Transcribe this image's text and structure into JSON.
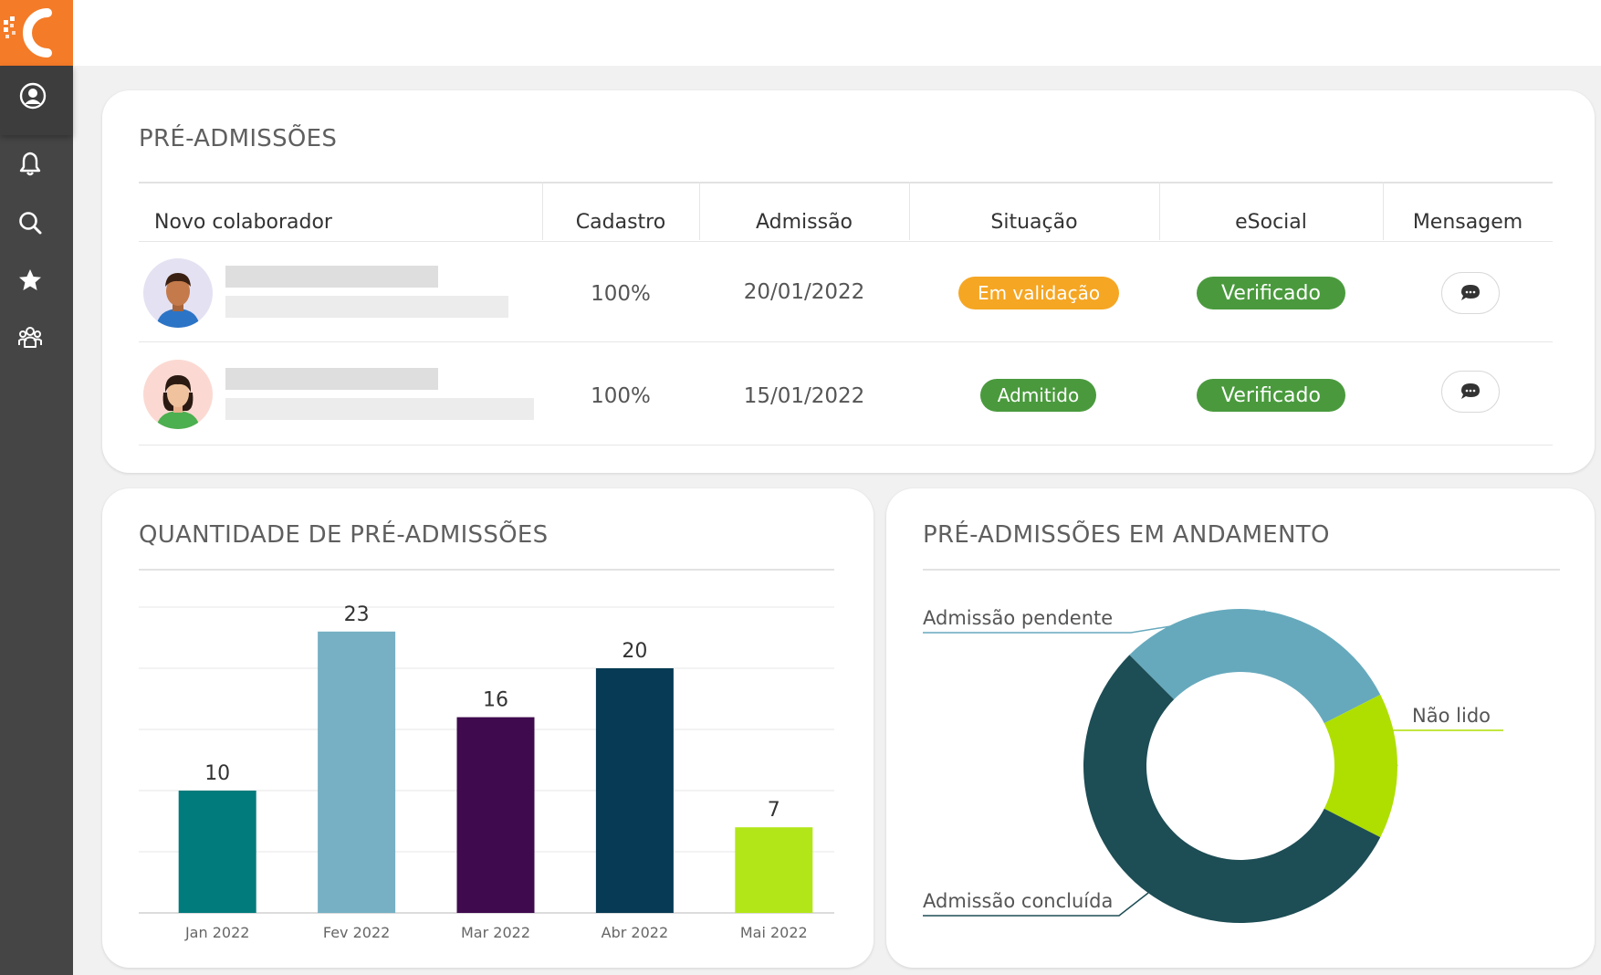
{
  "table": {
    "title": "PRÉ-ADMISSÕES",
    "columns": [
      "Novo colaborador",
      "Cadastro",
      "Admissão",
      "Situação",
      "eSocial",
      "Mensagem"
    ],
    "rows": [
      {
        "cadastro": "100%",
        "admissao": "20/01/2022",
        "situacao": "Em validação",
        "situacao_color": "#f5a623",
        "esocial": "Verificado",
        "esocial_color": "#4a9a3d",
        "avatar": "male"
      },
      {
        "cadastro": "100%",
        "admissao": "15/01/2022",
        "situacao": "Admitido",
        "situacao_color": "#4a9a3d",
        "esocial": "Verificado",
        "esocial_color": "#4a9a3d",
        "avatar": "female"
      }
    ]
  },
  "bar_card": {
    "title": "QUANTIDADE DE PRÉ-ADMISSÕES"
  },
  "donut_card": {
    "title": "PRÉ-ADMISSÕES EM ANDAMENTO"
  },
  "sidebar": {
    "icons": [
      "user-circle-icon",
      "bell-icon",
      "search-icon",
      "star-icon",
      "team-icon"
    ]
  },
  "colors": {
    "brand": "#f47b28",
    "sidebar": "#454545"
  },
  "chart_data": [
    {
      "type": "bar",
      "title": "QUANTIDADE DE PRÉ-ADMISSÕES",
      "categories": [
        "Jan 2022",
        "Fev 2022",
        "Mar 2022",
        "Abr 2022",
        "Mai 2022"
      ],
      "values": [
        10,
        23,
        16,
        20,
        7
      ],
      "colors": [
        "#027b7c",
        "#77b0c4",
        "#3f0a4e",
        "#073a54",
        "#b3e619"
      ],
      "ylim": [
        0,
        25
      ],
      "grid": true,
      "data_labels": true
    },
    {
      "type": "pie",
      "donut": true,
      "title": "PRÉ-ADMISSÕES EM ANDAMENTO",
      "labels": [
        "Admissão pendente",
        "Não lido",
        "Admissão concluída"
      ],
      "values": [
        30,
        15,
        55
      ],
      "colors": [
        "#66a9bd",
        "#aedf00",
        "#1d4d55"
      ]
    }
  ]
}
